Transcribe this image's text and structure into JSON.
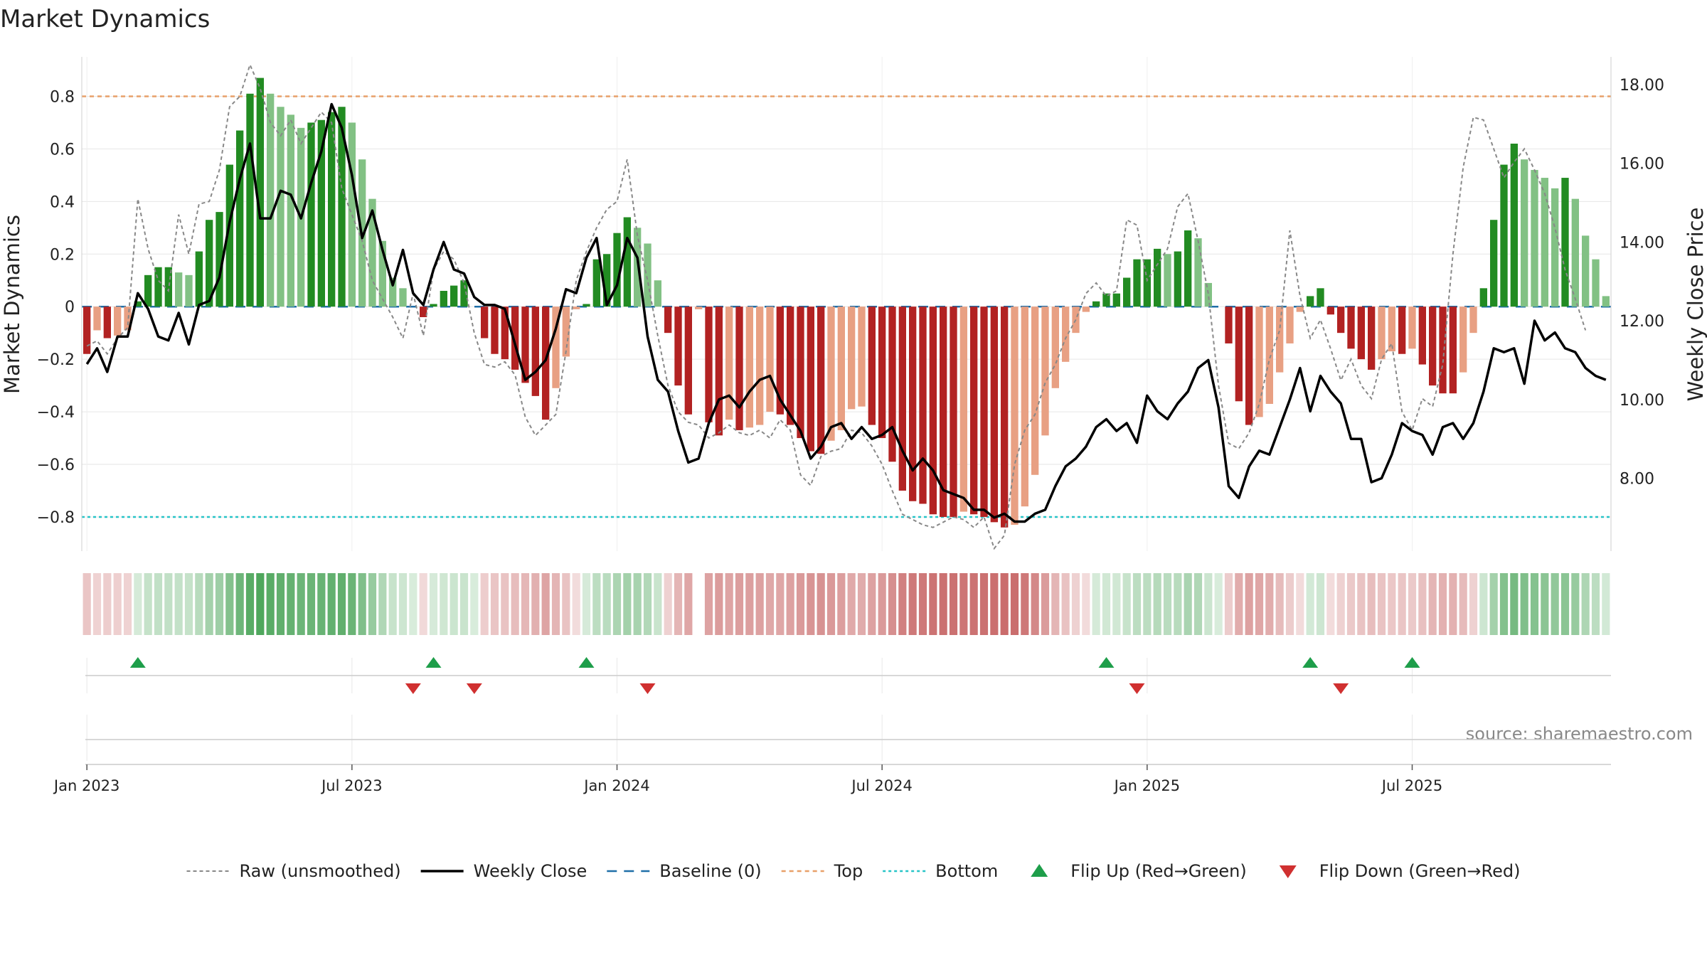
{
  "chart_data": {
    "type": "bar",
    "title": "Market Dynamics",
    "ylabel": "Market Dynamics",
    "y2label": "Weekly Close Price",
    "ylim": [
      -0.93,
      0.95
    ],
    "y2lim": [
      6.15,
      18.7
    ],
    "yticks": [
      "−0.8",
      "−0.6",
      "−0.4",
      "−0.2",
      "0",
      "0.2",
      "0.4",
      "0.6",
      "0.8"
    ],
    "y2ticks": [
      "8.00",
      "10.00",
      "12.00",
      "14.00",
      "16.00",
      "18.00"
    ],
    "date_ticks": [
      {
        "label": "Jan 2023",
        "week": 1
      },
      {
        "label": "Jul 2023",
        "week": 27
      },
      {
        "label": "Jan 2024",
        "week": 53
      },
      {
        "label": "Jul 2024",
        "week": 79
      },
      {
        "label": "Jan 2025",
        "week": 105
      },
      {
        "label": "Jul 2025",
        "week": 131
      }
    ],
    "top_level": 0.8,
    "bottom_level": -0.8,
    "baseline": 0,
    "bars": [
      -0.18,
      -0.09,
      -0.12,
      -0.11,
      -0.09,
      0.02,
      0.12,
      0.15,
      0.15,
      0.13,
      0.12,
      0.21,
      0.33,
      0.36,
      0.54,
      0.67,
      0.81,
      0.87,
      0.81,
      0.76,
      0.73,
      0.68,
      0.7,
      0.71,
      0.74,
      0.76,
      0.7,
      0.56,
      0.41,
      0.25,
      0.11,
      0.07,
      0,
      -0.04,
      0.01,
      0.06,
      0.08,
      0.1,
      0,
      -0.12,
      -0.18,
      -0.2,
      -0.24,
      -0.29,
      -0.34,
      -0.43,
      -0.31,
      -0.19,
      -0.01,
      0.01,
      0.18,
      0.2,
      0.28,
      0.34,
      0.3,
      0.24,
      0.1,
      -0.1,
      -0.3,
      -0.41,
      -0.01,
      -0.44,
      -0.49,
      -0.43,
      -0.47,
      -0.46,
      -0.45,
      -0.4,
      -0.41,
      -0.45,
      -0.5,
      -0.55,
      -0.56,
      -0.51,
      -0.47,
      -0.39,
      -0.38,
      -0.45,
      -0.5,
      -0.59,
      -0.7,
      -0.74,
      -0.75,
      -0.79,
      -0.8,
      -0.8,
      -0.78,
      -0.79,
      -0.8,
      -0.82,
      -0.84,
      -0.83,
      -0.76,
      -0.64,
      -0.49,
      -0.31,
      -0.21,
      -0.1,
      -0.02,
      0.02,
      0.05,
      0.05,
      0.11,
      0.18,
      0.18,
      0.22,
      0.2,
      0.21,
      0.29,
      0.26,
      0.09,
      0,
      -0.14,
      -0.36,
      -0.45,
      -0.42,
      -0.37,
      -0.25,
      -0.14,
      -0.02,
      0.04,
      0.07,
      -0.03,
      -0.1,
      -0.16,
      -0.2,
      -0.24,
      -0.2,
      -0.17,
      -0.18,
      -0.16,
      -0.22,
      -0.3,
      -0.33,
      -0.33,
      -0.25,
      -0.1,
      0.07,
      0.33,
      0.54,
      0.62,
      0.56,
      0.52,
      0.49,
      0.45,
      0.49,
      0.41,
      0.27,
      0.18,
      0.04
    ],
    "strip_values": [
      -0.18,
      -0.09,
      -0.12,
      -0.11,
      -0.09,
      0.02,
      0.12,
      0.15,
      0.15,
      0.13,
      0.12,
      0.21,
      0.33,
      0.36,
      0.54,
      0.67,
      0.81,
      0.87,
      0.81,
      0.76,
      0.73,
      0.68,
      0.7,
      0.71,
      0.74,
      0.76,
      0.7,
      0.56,
      0.41,
      0.25,
      0.11,
      0.07,
      0,
      -0.04,
      0.01,
      0.06,
      0.08,
      0.1,
      0,
      -0.12,
      -0.18,
      -0.2,
      -0.24,
      -0.29,
      -0.34,
      -0.43,
      -0.31,
      -0.19,
      -0.01,
      0.01,
      0.18,
      0.2,
      0.28,
      0.34,
      0.3,
      0.24,
      0.1,
      -0.1,
      -0.3,
      -0.41,
      null,
      -0.44,
      -0.49,
      -0.43,
      -0.47,
      -0.46,
      -0.45,
      -0.4,
      -0.41,
      -0.45,
      -0.5,
      -0.55,
      -0.56,
      -0.51,
      -0.47,
      -0.39,
      -0.38,
      -0.45,
      -0.5,
      -0.59,
      -0.7,
      -0.74,
      -0.75,
      -0.79,
      -0.8,
      -0.8,
      -0.78,
      -0.79,
      -0.8,
      -0.82,
      -0.84,
      -0.83,
      -0.76,
      -0.64,
      -0.49,
      -0.31,
      -0.21,
      -0.1,
      -0.02,
      0.02,
      0.05,
      0.05,
      0.11,
      0.18,
      0.18,
      0.22,
      0.2,
      0.21,
      0.29,
      0.26,
      0.09,
      0,
      -0.14,
      -0.36,
      -0.45,
      -0.42,
      -0.37,
      -0.25,
      -0.14,
      -0.02,
      0.04,
      0.07,
      -0.03,
      -0.1,
      -0.16,
      -0.2,
      -0.24,
      -0.2,
      -0.17,
      -0.18,
      -0.16,
      -0.22,
      -0.3,
      -0.33,
      -0.33,
      -0.25,
      -0.1,
      0.07,
      0.33,
      0.54,
      0.62,
      0.56,
      0.52,
      0.49,
      0.45,
      0.49,
      0.41,
      0.27,
      0.18,
      0.04
    ],
    "raw": [
      -0.15,
      -0.13,
      -0.18,
      -0.12,
      -0.08,
      0.41,
      0.22,
      0.1,
      0.06,
      0.35,
      0.2,
      0.39,
      0.4,
      0.52,
      0.76,
      0.8,
      0.92,
      0.83,
      0.7,
      0.65,
      0.71,
      0.62,
      0.68,
      0.74,
      0.7,
      0.45,
      0.35,
      0.25,
      0.1,
      0.03,
      -0.04,
      -0.12,
      0.05,
      -0.11,
      0.14,
      0.21,
      0.18,
      0.09,
      -0.1,
      -0.22,
      -0.23,
      -0.21,
      -0.26,
      -0.42,
      -0.49,
      -0.45,
      -0.41,
      -0.17,
      0.1,
      0.21,
      0.3,
      0.37,
      0.4,
      0.56,
      0.27,
      0.1,
      -0.11,
      -0.3,
      -0.4,
      -0.44,
      -0.45,
      -0.5,
      -0.48,
      -0.45,
      -0.48,
      -0.49,
      -0.47,
      -0.5,
      -0.43,
      -0.47,
      -0.64,
      -0.68,
      -0.57,
      -0.55,
      -0.54,
      -0.47,
      -0.48,
      -0.53,
      -0.6,
      -0.7,
      -0.79,
      -0.81,
      -0.83,
      -0.84,
      -0.82,
      -0.8,
      -0.81,
      -0.84,
      -0.8,
      -0.92,
      -0.87,
      -0.6,
      -0.47,
      -0.41,
      -0.29,
      -0.22,
      -0.12,
      -0.05,
      0.05,
      0.09,
      0.04,
      0.06,
      0.33,
      0.31,
      0.1,
      0.16,
      0.22,
      0.38,
      0.43,
      0.25,
      0.05,
      -0.3,
      -0.52,
      -0.54,
      -0.48,
      -0.37,
      -0.2,
      -0.09,
      0.29,
      0.04,
      -0.12,
      -0.05,
      -0.16,
      -0.28,
      -0.2,
      -0.3,
      -0.35,
      -0.2,
      -0.14,
      -0.4,
      -0.47,
      -0.35,
      -0.38,
      -0.22,
      0.2,
      0.53,
      0.72,
      0.71,
      0.6,
      0.49,
      0.55,
      0.6,
      0.52,
      0.43,
      0.3,
      0.14,
      0.03,
      -0.09
    ],
    "close": [
      10.9,
      11.3,
      10.7,
      11.6,
      11.6,
      12.7,
      12.3,
      11.6,
      11.5,
      12.2,
      11.4,
      12.4,
      12.5,
      13.1,
      14.5,
      15.6,
      16.5,
      14.6,
      14.6,
      15.3,
      15.2,
      14.6,
      15.5,
      16.3,
      17.5,
      16.9,
      15.7,
      14.1,
      14.8,
      13.8,
      12.9,
      13.8,
      12.7,
      12.4,
      13.3,
      14,
      13.3,
      13.2,
      12.6,
      12.4,
      12.4,
      12.3,
      11.4,
      10.5,
      10.7,
      11,
      11.8,
      12.8,
      12.7,
      13.6,
      14.1,
      12.4,
      12.9,
      14.1,
      13.6,
      11.6,
      10.5,
      10.2,
      9.2,
      8.4,
      8.5,
      9.4,
      10,
      10.1,
      9.8,
      10.2,
      10.5,
      10.6,
      10,
      9.6,
      9.2,
      8.5,
      8.8,
      9.3,
      9.4,
      9,
      9.3,
      9,
      9.1,
      9.3,
      8.7,
      8.2,
      8.5,
      8.2,
      7.7,
      7.6,
      7.5,
      7.2,
      7.2,
      7,
      7.1,
      6.9,
      6.9,
      7.1,
      7.2,
      7.8,
      8.3,
      8.5,
      8.8,
      9.3,
      9.5,
      9.2,
      9.4,
      8.9,
      10.1,
      9.7,
      9.5,
      9.9,
      10.2,
      10.8,
      11,
      9.8,
      7.8,
      7.5,
      8.3,
      8.7,
      8.6,
      9.3,
      10,
      10.8,
      9.7,
      10.6,
      10.2,
      9.9,
      9,
      9,
      7.9,
      8,
      8.6,
      9.4,
      9.2,
      9.1,
      8.6,
      9.3,
      9.4,
      9,
      9.4,
      10.2,
      11.3,
      11.2,
      11.3,
      10.4,
      12,
      11.5,
      11.7,
      11.3,
      11.2,
      10.8,
      10.6,
      10.5
    ],
    "flip_up_weeks": [
      6,
      35,
      50,
      101,
      121,
      131
    ],
    "flip_down_weeks": [
      33,
      39,
      56,
      104,
      124
    ],
    "colors": {
      "up_strong": "#228b22",
      "up_weak": "#82c184",
      "down_strong": "#b22222",
      "down_weak": "#e8a083",
      "raw_line": "#888888",
      "close_line": "#000000",
      "baseline": "#1f6fa8",
      "top": "#e8a069",
      "bottom": "#27c4c7",
      "flip_up": "#1e9e4a",
      "flip_down": "#d03030",
      "strip_green": "#3e9e4d",
      "strip_red": "#c35a5a"
    },
    "legend": [
      {
        "key": "raw",
        "label": "Raw (unsmoothed)"
      },
      {
        "key": "close",
        "label": "Weekly Close"
      },
      {
        "key": "baseline",
        "label": "Baseline (0)"
      },
      {
        "key": "top",
        "label": "Top"
      },
      {
        "key": "bottom",
        "label": "Bottom"
      },
      {
        "key": "flip_up",
        "label": "Flip Up (Red→Green)"
      },
      {
        "key": "flip_down",
        "label": "Flip Down (Green→Red)"
      }
    ],
    "legend_position": "bottom-center",
    "grid": true
  },
  "source": "source: sharemaestro.com"
}
